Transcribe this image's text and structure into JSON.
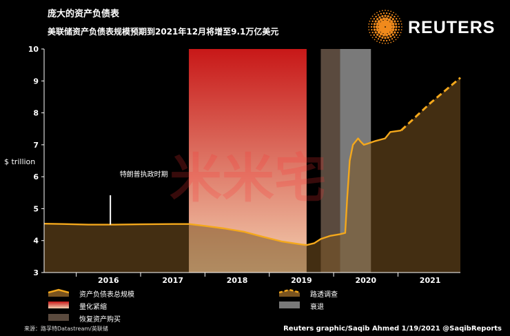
{
  "header": {
    "title": "庞大的资产负债表",
    "subtitle": "美联储资产负债表规模预期到2021年12月将增至9.1万亿美元",
    "logo_text": "REUTERS"
  },
  "footer": {
    "source": "来源：路孚特Datastream/英联储",
    "credit": "Reuters graphic/Saqib Ahmed 1/19/2021 @SaqibReports"
  },
  "watermark": {
    "text": "米米宅"
  },
  "legend": {
    "balance_sheet": "资产负债表总规模",
    "survey": "路透调查",
    "tightening": "量化紧缩",
    "recession": "衰退",
    "resume_buying": "恢复资产购买"
  },
  "colors": {
    "background": "#000000",
    "line": "#f4a81c",
    "area": "#7a5420",
    "tightening_top": "#c81818",
    "tightening_bottom": "#f2d0b0",
    "recession": "#7a7a7a",
    "resume_buying": "#5a4a3e"
  },
  "chart_data": {
    "type": "area",
    "title": "庞大的资产负债表",
    "subtitle": "美联储资产负债表规模预期到2021年12月将增至9.1万亿美元",
    "ylabel": "$ trillion",
    "ylim": [
      3,
      10
    ],
    "xlim": [
      2015.5,
      2021.97
    ],
    "yticks": [
      "3",
      "4",
      "5",
      "6",
      "7",
      "8",
      "9",
      "10"
    ],
    "xticks": [
      {
        "label": "2016",
        "x": 2016.0
      },
      {
        "label": "2017",
        "x": 2017.0
      },
      {
        "label": "2018",
        "x": 2018.0
      },
      {
        "label": "2019",
        "x": 2019.0
      },
      {
        "label": "2020",
        "x": 2020.0
      },
      {
        "label": "2021",
        "x": 2021.0
      }
    ],
    "grid": false,
    "annotations": [
      {
        "text": "特朗普执政时期",
        "x": 2017.05,
        "y": 5.42
      }
    ],
    "shaded_periods": [
      {
        "kind": "tightening",
        "start": 2017.75,
        "end": 2019.58
      },
      {
        "kind": "resume_buying",
        "start": 2019.8,
        "end": 2020.1
      },
      {
        "kind": "recession",
        "start": 2020.1,
        "end": 2020.58
      }
    ],
    "series": [
      {
        "name": "资产负债表总规模",
        "style": "solid",
        "points": [
          [
            2015.5,
            4.53
          ],
          [
            2015.8,
            4.52
          ],
          [
            2016.2,
            4.5
          ],
          [
            2016.6,
            4.5
          ],
          [
            2017.0,
            4.51
          ],
          [
            2017.5,
            4.52
          ],
          [
            2017.75,
            4.52
          ],
          [
            2018.0,
            4.46
          ],
          [
            2018.3,
            4.38
          ],
          [
            2018.6,
            4.28
          ],
          [
            2018.9,
            4.12
          ],
          [
            2019.2,
            3.97
          ],
          [
            2019.5,
            3.88
          ],
          [
            2019.58,
            3.86
          ],
          [
            2019.7,
            3.92
          ],
          [
            2019.8,
            4.05
          ],
          [
            2019.95,
            4.15
          ],
          [
            2020.1,
            4.2
          ],
          [
            2020.18,
            4.24
          ],
          [
            2020.21,
            5.3
          ],
          [
            2020.25,
            6.5
          ],
          [
            2020.3,
            7.0
          ],
          [
            2020.38,
            7.2
          ],
          [
            2020.42,
            7.1
          ],
          [
            2020.47,
            7.0
          ],
          [
            2020.55,
            7.05
          ],
          [
            2020.65,
            7.12
          ],
          [
            2020.8,
            7.2
          ],
          [
            2020.88,
            7.4
          ],
          [
            2021.05,
            7.45
          ]
        ]
      },
      {
        "name": "路透调查",
        "style": "dashed",
        "points": [
          [
            2021.05,
            7.45
          ],
          [
            2021.5,
            8.3
          ],
          [
            2021.97,
            9.1
          ]
        ]
      }
    ]
  }
}
